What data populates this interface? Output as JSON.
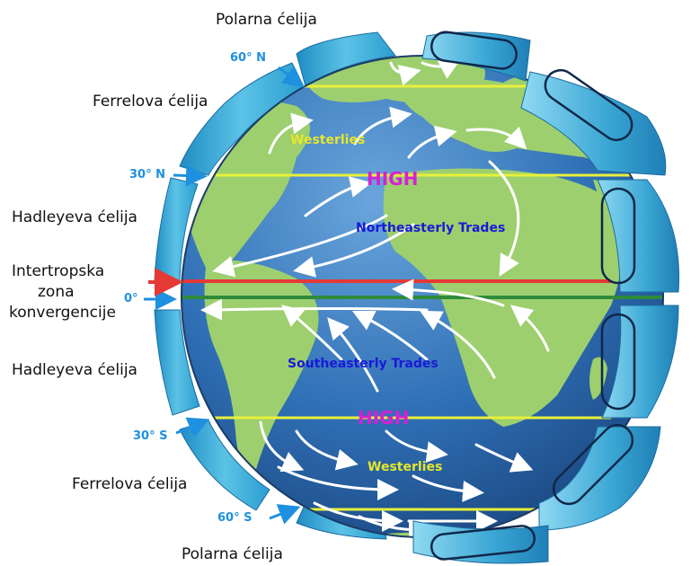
{
  "cell_labels": {
    "polar_north": "Polarna ćelija",
    "ferrel_north": "Ferrelova ćelija",
    "hadley_north": "Hadleyeva ćelija",
    "itcz_line1": "Intertropska",
    "itcz_line2": "zona",
    "itcz_line3": "konvergencije",
    "hadley_south": "Hadleyeva ćelija",
    "ferrel_south": "Ferrelova ćelija",
    "polar_south": "Polarna ćelija"
  },
  "latitudes": {
    "n60": "60° N",
    "n30": "30° N",
    "eq": "0°",
    "s30": "30° S",
    "s60": "60° S"
  },
  "winds": {
    "westerlies_north": "Westerlies",
    "northeast_trades": "Northeasterly Trades",
    "southeast_trades": "Southeasterly Trades",
    "westerlies_south": "Westerlies"
  },
  "pressure": {
    "high_north": "HIGH",
    "high_south": "HIGH"
  },
  "colors": {
    "ocean": "#2f6fb5",
    "land": "#9dcf6f",
    "cell_band": "#3aa6d4",
    "latitude_line": "#e8f03a",
    "itcz_line": "#e53935",
    "equator_line": "#2e8b3a",
    "arrow": "#ffffff",
    "lat_label": "#1e90e0",
    "westerlies_text": "#e6e62a",
    "trades_text": "#1a1ad6",
    "high_text": "#d61fd6"
  }
}
